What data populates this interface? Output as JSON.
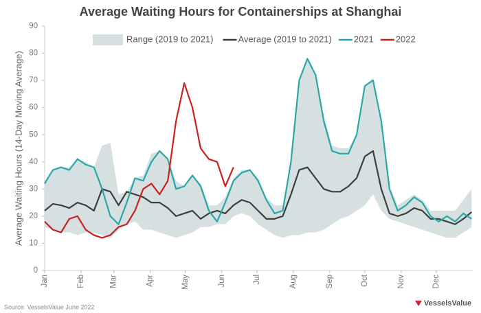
{
  "chart_data": {
    "type": "line",
    "title": "Average Waiting Hours for Containerships at Shanghai",
    "y_label": "Average Waiting Hours (14-Day Moving Average)",
    "source": "Source: VesselsValue June 2022",
    "logo": "VesselsValue",
    "x": [
      0,
      7,
      14,
      21,
      28,
      35,
      42,
      49,
      56,
      63,
      70,
      77,
      84,
      91,
      98,
      105,
      112,
      119,
      126,
      133,
      140,
      147,
      154,
      161,
      168,
      175,
      182,
      189,
      196,
      203,
      210,
      217,
      224,
      231,
      238,
      245,
      252,
      259,
      266,
      273,
      280,
      287,
      294,
      301,
      308,
      315,
      322,
      329,
      336,
      343,
      350,
      357,
      364
    ],
    "xlim": [
      0,
      365
    ],
    "xticks": [
      {
        "value": 0,
        "label": "Jan"
      },
      {
        "value": 31,
        "label": "Feb"
      },
      {
        "value": 59,
        "label": "Mar"
      },
      {
        "value": 90,
        "label": "Apr"
      },
      {
        "value": 120,
        "label": "May"
      },
      {
        "value": 151,
        "label": "Jun"
      },
      {
        "value": 181,
        "label": "Jul"
      },
      {
        "value": 212,
        "label": "Aug"
      },
      {
        "value": 243,
        "label": "Sep"
      },
      {
        "value": 273,
        "label": "Oct"
      },
      {
        "value": 304,
        "label": "Nov"
      },
      {
        "value": 334,
        "label": "Dec"
      }
    ],
    "ylim": [
      0,
      90
    ],
    "yticks": [
      0,
      10,
      20,
      30,
      40,
      50,
      60,
      70,
      80,
      90
    ],
    "range": {
      "name": "Range (2019 to 2021)",
      "color": "#d6e0e1",
      "low": [
        16,
        15,
        14,
        14,
        13,
        14,
        14,
        13,
        12,
        15,
        17,
        18,
        15,
        15,
        14,
        13,
        12,
        13,
        14,
        16,
        16,
        17,
        17,
        20,
        21,
        20,
        17,
        15,
        13,
        12,
        13,
        13,
        14,
        14,
        15,
        17,
        19,
        20,
        22,
        24,
        28,
        22,
        19,
        18,
        17,
        16,
        15,
        14,
        13,
        12,
        12,
        14,
        16
      ],
      "high": [
        33,
        37,
        38,
        38,
        41,
        40,
        38,
        46,
        47,
        28,
        29,
        34,
        35,
        43,
        44,
        41,
        33,
        31,
        35,
        32,
        24,
        24,
        27,
        34,
        37,
        37,
        34,
        27,
        24,
        24,
        40,
        70,
        78,
        72,
        57,
        46,
        45,
        45,
        50,
        68,
        71,
        55,
        31,
        24,
        26,
        28,
        26,
        22,
        22,
        22,
        22,
        26,
        30
      ]
    },
    "series": [
      {
        "name": "Average (2019 to 2021)",
        "color": "#3d3d3d",
        "values": [
          22,
          24.5,
          24,
          23,
          25,
          24,
          22,
          30,
          29,
          24,
          29,
          28,
          27,
          25,
          25,
          23,
          20,
          21,
          22,
          19,
          21,
          22,
          21,
          24,
          26,
          25,
          22,
          19,
          19,
          20,
          28,
          37,
          38,
          34,
          30,
          29,
          29,
          31,
          34,
          42,
          44,
          30,
          21,
          20,
          21,
          23,
          22,
          19,
          19,
          18,
          17,
          19,
          21.5
        ]
      },
      {
        "name": "2021",
        "color": "#2aa7a7",
        "values": [
          32,
          37,
          38,
          37,
          41,
          39,
          38,
          30,
          20,
          17,
          25,
          34,
          33,
          40,
          44,
          41,
          30,
          31,
          35,
          31,
          22,
          18,
          25,
          33,
          36,
          37,
          33,
          26,
          21,
          22,
          40,
          70,
          78,
          72,
          55,
          44,
          43,
          43,
          50,
          68,
          70,
          55,
          30,
          22,
          24,
          27,
          25,
          20,
          18,
          20,
          18,
          21,
          19
        ]
      },
      {
        "name": "2022",
        "color": "#cc1f1f",
        "values": [
          18,
          15,
          14,
          19,
          20,
          15,
          13,
          12,
          13,
          16,
          17,
          22,
          30,
          32,
          28,
          33,
          55,
          69,
          60,
          45,
          41,
          40,
          31,
          38,
          null,
          null,
          null,
          null,
          null,
          null,
          null,
          null,
          null,
          null,
          null,
          null,
          null,
          null,
          null,
          null,
          null,
          null,
          null,
          null,
          null,
          null,
          null,
          null,
          null,
          null,
          null,
          null,
          null
        ]
      }
    ]
  }
}
